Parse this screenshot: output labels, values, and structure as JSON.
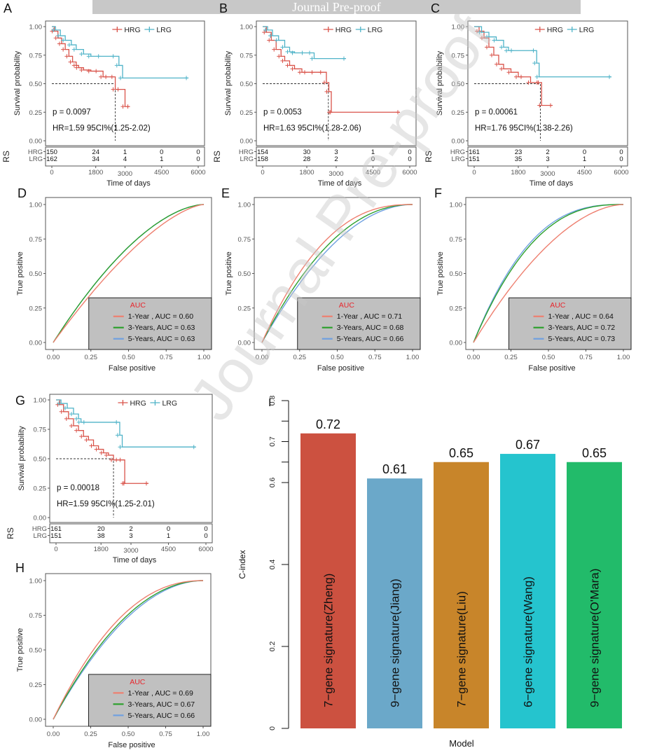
{
  "banner": {
    "text": "Journal Pre-proof"
  },
  "watermark": {
    "text": "Journal Pre-proof"
  },
  "colors": {
    "hrg": "#d9534a",
    "lrg": "#4fb3c8",
    "year1": "#ee7f6f",
    "year3": "#2ca02c",
    "year5": "#6fa0e0",
    "auc_title": "#e8262d",
    "legend_bg": "#c0c0c0"
  },
  "chart_data": [
    {
      "id": "A",
      "type": "line",
      "subtype": "kaplan-meier",
      "panel_label": "A",
      "xlabel": "Time of days",
      "ylabel": "Survival probability",
      "xlim": [
        0,
        6000
      ],
      "ylim": [
        0,
        1
      ],
      "xticks": [
        "0",
        "1800",
        "3000",
        "4500",
        "6000"
      ],
      "xtick_values": [
        0,
        1800,
        3000,
        4500,
        6000
      ],
      "yticks": [
        "0.00",
        "0.25",
        "0.50",
        "0.75",
        "1.00"
      ],
      "legend": [
        "HRG",
        "LRG"
      ],
      "legend_placement": "top-right",
      "p_value": "p = 0.0097",
      "hr_text": "HR=1.59 95CI%(1.25-2.02)",
      "median_hrg": 2600,
      "series": [
        {
          "name": "HRG",
          "x": [
            0,
            100,
            250,
            400,
            550,
            700,
            850,
            1000,
            1100,
            1300,
            1600,
            1900,
            2100,
            2300,
            2550,
            2600,
            2800,
            3000,
            3200
          ],
          "y": [
            1.0,
            0.96,
            0.9,
            0.85,
            0.8,
            0.74,
            0.69,
            0.66,
            0.64,
            0.62,
            0.61,
            0.61,
            0.56,
            0.56,
            0.56,
            0.45,
            0.45,
            0.3,
            0.3
          ]
        },
        {
          "name": "LRG",
          "x": [
            0,
            150,
            350,
            550,
            800,
            1000,
            1300,
            1600,
            2000,
            2600,
            2750,
            2900,
            5600
          ],
          "y": [
            1.0,
            0.97,
            0.92,
            0.88,
            0.84,
            0.8,
            0.76,
            0.74,
            0.74,
            0.74,
            0.66,
            0.55,
            0.55
          ]
        }
      ],
      "risk_table": {
        "title": "RS",
        "rows": [
          {
            "group": "HRG",
            "counts": [
              "150",
              "24",
              "1",
              "0",
              "0"
            ]
          },
          {
            "group": "LRG",
            "counts": [
              "162",
              "34",
              "4",
              "1",
              "0"
            ]
          }
        ]
      }
    },
    {
      "id": "B",
      "type": "line",
      "subtype": "kaplan-meier",
      "panel_label": "B",
      "xlabel": "Time of days",
      "ylabel": "Survival probability",
      "xlim": [
        0,
        6000
      ],
      "ylim": [
        0,
        1
      ],
      "xticks": [
        "0",
        "1800",
        "3000",
        "4500",
        "6000"
      ],
      "xtick_values": [
        0,
        1800,
        3000,
        4500,
        6000
      ],
      "yticks": [
        "0.00",
        "0.25",
        "0.50",
        "0.75",
        "1.00"
      ],
      "legend": [
        "HRG",
        "LRG"
      ],
      "legend_placement": "top-right",
      "p_value": "p = 0.0053",
      "hr_text": "HR=1.63 95CI%(1.28-2.06)",
      "median_hrg": 2680,
      "series": [
        {
          "name": "HRG",
          "x": [
            0,
            150,
            350,
            550,
            750,
            900,
            1100,
            1300,
            1600,
            1800,
            2100,
            2450,
            2600,
            2700,
            2800,
            2850,
            5600
          ],
          "y": [
            1.0,
            0.95,
            0.88,
            0.8,
            0.74,
            0.7,
            0.66,
            0.63,
            0.6,
            0.6,
            0.6,
            0.6,
            0.51,
            0.43,
            0.25,
            0.25,
            0.25
          ]
        },
        {
          "name": "LRG",
          "x": [
            0,
            200,
            400,
            650,
            900,
            1100,
            1300,
            1700,
            2000,
            2100,
            3400
          ],
          "y": [
            1.0,
            0.97,
            0.92,
            0.88,
            0.82,
            0.78,
            0.77,
            0.77,
            0.77,
            0.72,
            0.72
          ]
        }
      ],
      "risk_table": {
        "title": "RS",
        "rows": [
          {
            "group": "HRG",
            "counts": [
              "154",
              "30",
              "3",
              "1",
              "0"
            ]
          },
          {
            "group": "LRG",
            "counts": [
              "158",
              "28",
              "2",
              "0",
              "0"
            ]
          }
        ]
      }
    },
    {
      "id": "C",
      "type": "line",
      "subtype": "kaplan-meier",
      "panel_label": "C",
      "xlabel": "Time of days",
      "ylabel": "Survival probability",
      "xlim": [
        0,
        6000
      ],
      "ylim": [
        0,
        1
      ],
      "xticks": [
        "0",
        "1800",
        "3000",
        "4500",
        "6000"
      ],
      "xtick_values": [
        0,
        1800,
        3000,
        4500,
        6000
      ],
      "yticks": [
        "0.00",
        "0.25",
        "0.50",
        "0.75",
        "1.00"
      ],
      "legend": [
        "HRG",
        "LRG"
      ],
      "legend_placement": "top-right",
      "p_value": "p = 0.00061",
      "hr_text": "HR=1.76 95CI%(1.38-2.26)",
      "median_hrg": 2700,
      "series": [
        {
          "name": "HRG",
          "x": [
            0,
            200,
            400,
            600,
            800,
            1000,
            1200,
            1500,
            1800,
            2000,
            2300,
            2650,
            2700,
            2750,
            3200
          ],
          "y": [
            1.0,
            0.96,
            0.9,
            0.82,
            0.75,
            0.67,
            0.63,
            0.6,
            0.56,
            0.56,
            0.51,
            0.51,
            0.51,
            0.31,
            0.31
          ]
        },
        {
          "name": "LRG",
          "x": [
            0,
            300,
            600,
            900,
            1200,
            1400,
            1600,
            2500,
            2550,
            2650,
            5600
          ],
          "y": [
            1.0,
            0.95,
            0.91,
            0.88,
            0.82,
            0.79,
            0.79,
            0.79,
            0.68,
            0.56,
            0.56
          ]
        }
      ],
      "risk_table": {
        "title": "RS",
        "rows": [
          {
            "group": "HRG",
            "counts": [
              "161",
              "23",
              "2",
              "0",
              "0"
            ]
          },
          {
            "group": "LRG",
            "counts": [
              "151",
              "35",
              "3",
              "1",
              "0"
            ]
          }
        ]
      }
    },
    {
      "id": "D",
      "type": "line",
      "subtype": "roc",
      "panel_label": "D",
      "xlabel": "False positive",
      "ylabel": "True positive",
      "xlim": [
        0,
        1
      ],
      "ylim": [
        0,
        1
      ],
      "xticks": [
        "0.00",
        "0.25",
        "0.50",
        "0.75",
        "1.00"
      ],
      "yticks": [
        "0.00",
        "0.25",
        "0.50",
        "0.75",
        "1.00"
      ],
      "legend_title": "AUC",
      "legend_placement": "bottom-right",
      "series": [
        {
          "name": "1-Year",
          "label": "1-Year ,  AUC = 0.60",
          "auc": 0.6
        },
        {
          "name": "3-Years",
          "label": "3-Years, AUC = 0.63",
          "auc": 0.63
        },
        {
          "name": "5-Years",
          "label": "5-Years, AUC = 0.63",
          "auc": 0.63
        }
      ]
    },
    {
      "id": "E",
      "type": "line",
      "subtype": "roc",
      "panel_label": "E",
      "xlabel": "False positive",
      "ylabel": "True positive",
      "xlim": [
        0,
        1
      ],
      "ylim": [
        0,
        1
      ],
      "xticks": [
        "0.00",
        "0.25",
        "0.50",
        "0.75",
        "1.00"
      ],
      "yticks": [
        "0.00",
        "0.25",
        "0.50",
        "0.75",
        "1.00"
      ],
      "legend_title": "AUC",
      "legend_placement": "bottom-right",
      "series": [
        {
          "name": "1-Year",
          "label": "1-Year ,  AUC = 0.71",
          "auc": 0.71
        },
        {
          "name": "3-Years",
          "label": "3-Years, AUC = 0.68",
          "auc": 0.68
        },
        {
          "name": "5-Years",
          "label": "5-Years, AUC = 0.66",
          "auc": 0.66
        }
      ]
    },
    {
      "id": "F",
      "type": "line",
      "subtype": "roc",
      "panel_label": "F",
      "xlabel": "False positive",
      "ylabel": "True positive",
      "xlim": [
        0,
        1
      ],
      "ylim": [
        0,
        1
      ],
      "xticks": [
        "0.00",
        "0.25",
        "0.50",
        "0.75",
        "1.00"
      ],
      "yticks": [
        "0.00",
        "0.25",
        "0.50",
        "0.75",
        "1.00"
      ],
      "legend_title": "AUC",
      "legend_placement": "bottom-right",
      "series": [
        {
          "name": "1-Year",
          "label": "1-Year ,  AUC = 0.64",
          "auc": 0.64
        },
        {
          "name": "3-Years",
          "label": "3-Years, AUC = 0.72",
          "auc": 0.72
        },
        {
          "name": "5-Years",
          "label": "5-Years, AUC = 0.73",
          "auc": 0.73
        }
      ]
    },
    {
      "id": "G",
      "type": "line",
      "subtype": "kaplan-meier",
      "panel_label": "G",
      "xlabel": "Time of days",
      "ylabel": "Survival probability",
      "xlim": [
        0,
        6000
      ],
      "ylim": [
        0,
        1
      ],
      "xticks": [
        "0",
        "1800",
        "3000",
        "4500",
        "6000"
      ],
      "xtick_values": [
        0,
        1800,
        3000,
        4500,
        6000
      ],
      "yticks": [
        "0.00",
        "0.25",
        "0.50",
        "0.75",
        "1.00"
      ],
      "legend": [
        "HRG",
        "LRG"
      ],
      "legend_placement": "top-right",
      "p_value": "p = 0.00018",
      "hr_text": "HR=1.59 95CI%(1.25-2.01)",
      "median_hrg": 2300,
      "series": [
        {
          "name": "HRG",
          "x": [
            0,
            150,
            300,
            500,
            700,
            900,
            1100,
            1300,
            1500,
            1700,
            1900,
            2100,
            2300,
            2500,
            2650,
            2750,
            2800,
            3700
          ],
          "y": [
            1.0,
            0.96,
            0.9,
            0.84,
            0.78,
            0.74,
            0.69,
            0.66,
            0.61,
            0.58,
            0.55,
            0.53,
            0.49,
            0.49,
            0.49,
            0.29,
            0.29,
            0.29
          ]
        },
        {
          "name": "LRG",
          "x": [
            0,
            200,
            450,
            700,
            900,
            1000,
            1200,
            2500,
            2550,
            2650,
            5600
          ],
          "y": [
            1.0,
            0.97,
            0.93,
            0.88,
            0.84,
            0.81,
            0.81,
            0.81,
            0.7,
            0.6,
            0.6
          ]
        }
      ],
      "risk_table": {
        "title": "RS",
        "rows": [
          {
            "group": "HRG",
            "counts": [
              "161",
              "20",
              "2",
              "0",
              "0"
            ]
          },
          {
            "group": "LRG",
            "counts": [
              "151",
              "38",
              "3",
              "1",
              "0"
            ]
          }
        ]
      }
    },
    {
      "id": "H",
      "type": "line",
      "subtype": "roc",
      "panel_label": "H",
      "xlabel": "False positive",
      "ylabel": "True positive",
      "xlim": [
        0,
        1
      ],
      "ylim": [
        0,
        1
      ],
      "xticks": [
        "0.00",
        "0.25",
        "0.50",
        "0.75",
        "1.00"
      ],
      "yticks": [
        "0.00",
        "0.25",
        "0.50",
        "0.75",
        "1.00"
      ],
      "legend_title": "AUC",
      "legend_placement": "bottom-right",
      "series": [
        {
          "name": "1-Year",
          "label": "1-Year ,  AUC = 0.69",
          "auc": 0.69
        },
        {
          "name": "3-Years",
          "label": "3-Years, AUC = 0.67",
          "auc": 0.67
        },
        {
          "name": "5-Years",
          "label": "5-Years, AUC = 0.66",
          "auc": 0.66
        }
      ]
    },
    {
      "id": "I",
      "type": "bar",
      "panel_label": "I",
      "xlabel": "Model",
      "ylabel": "C-index",
      "ylim": [
        0,
        0.8
      ],
      "yticks": [
        "0",
        "0.2",
        "0.4",
        "0.6",
        "",
        "0.7",
        "",
        "0.8"
      ],
      "ytick_values": [
        0,
        0.2,
        0.4,
        0.6,
        0.65,
        0.7,
        0.75,
        0.8
      ],
      "categories": [
        "7−gene signature(Zheng)",
        "9−gene signature(Jiang)",
        "7−gene signature(Liu)",
        "6−gene signature(Wang)",
        "9−gene signature(O'Mara)"
      ],
      "values": [
        0.72,
        0.61,
        0.65,
        0.67,
        0.65
      ],
      "value_labels": [
        "0.72",
        "0.61",
        "0.65",
        "0.67",
        "0.65"
      ],
      "bar_colors": [
        "#cc5140",
        "#6ba8c9",
        "#c8852a",
        "#25c4ce",
        "#22bb6a"
      ]
    }
  ]
}
